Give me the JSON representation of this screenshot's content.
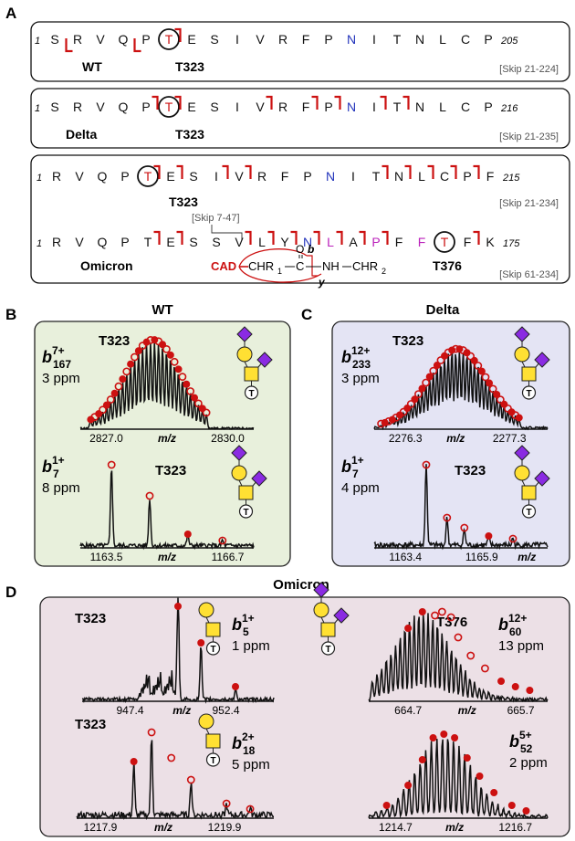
{
  "panel_labels": {
    "A": "A",
    "B": "B",
    "C": "C",
    "D": "D"
  },
  "colors": {
    "red": "#cc1111",
    "blue": "#2233bb",
    "magenta": "#bb22bb",
    "wt_bg": "#e8f0dc",
    "delta_bg": "#e4e4f4",
    "omicron_bg": "#ece0e6",
    "glycan_yellow": "#ffe033",
    "glycan_purple": "#8a2be2"
  },
  "panelA": {
    "wt": {
      "start": "1",
      "end": "205",
      "residues": [
        "S",
        "R",
        "V",
        "Q",
        "P",
        "T",
        "E",
        "S",
        "I",
        "V",
        "R",
        "F",
        "P",
        "N",
        "I",
        "T",
        "N",
        "L",
        "C",
        "P"
      ],
      "label": "WT",
      "site": "T323",
      "skip": "[Skip 21-224]"
    },
    "delta": {
      "start": "1",
      "end": "216",
      "residues": [
        "S",
        "R",
        "V",
        "Q",
        "P",
        "T",
        "E",
        "S",
        "I",
        "V",
        "R",
        "F",
        "P",
        "N",
        "I",
        "T",
        "N",
        "L",
        "C",
        "P"
      ],
      "label": "Delta",
      "site": "T323",
      "skip": "[Skip 21-235]"
    },
    "omicron1": {
      "start": "1",
      "end": "215",
      "residues": [
        "R",
        "V",
        "Q",
        "P",
        "T",
        "E",
        "S",
        "I",
        "V",
        "R",
        "F",
        "P",
        "N",
        "I",
        "T",
        "N",
        "L",
        "C",
        "P",
        "F"
      ],
      "site": "T323",
      "skip": "[Skip 21-234]"
    },
    "omicron2": {
      "start": "1",
      "end": "175",
      "residues": [
        "R",
        "V",
        "Q",
        "P",
        "T",
        "E",
        "S",
        "S",
        "V",
        "L",
        "Y",
        "N",
        "L",
        "A",
        "P",
        "F",
        "F",
        "T",
        "F",
        "K"
      ],
      "skip_inner": "[Skip 7-47]",
      "label": "Omicron",
      "site": "T376",
      "skip": "[Skip 61-234]"
    },
    "scheme": {
      "cad": "CAD",
      "chr1": "CHR",
      "sub1": "1",
      "c": "C",
      "o": "O",
      "b": "b",
      "y": "y",
      "nh": "NH",
      "chr2": "CHR",
      "sub2": "2"
    }
  },
  "panelB": {
    "title": "WT",
    "top": {
      "site": "T323",
      "ion": "b",
      "sub": "167",
      "sup": "7+",
      "ppm": "3 ppm",
      "ticks": [
        "2827.0",
        "2830.0"
      ],
      "axis": "m/z"
    },
    "bottom": {
      "site": "T323",
      "ion": "b",
      "sub": "7",
      "sup": "1+",
      "ppm": "8 ppm",
      "ticks": [
        "1163.5",
        "1166.7"
      ],
      "axis": "m/z"
    }
  },
  "panelC": {
    "title": "Delta",
    "top": {
      "site": "T323",
      "ion": "b",
      "sub": "233",
      "sup": "12+",
      "ppm": "3 ppm",
      "ticks": [
        "2276.3",
        "2277.3"
      ],
      "axis": "m/z"
    },
    "bottom": {
      "site": "T323",
      "ion": "b",
      "sub": "7",
      "sup": "1+",
      "ppm": "4 ppm",
      "ticks": [
        "1163.4",
        "1165.9"
      ],
      "axis": "m/z"
    }
  },
  "panelD": {
    "title": "Omicron",
    "tl": {
      "site": "T323",
      "ion": "b",
      "sub": "5",
      "sup": "1+",
      "ppm": "1 ppm",
      "ticks": [
        "947.4",
        "952.4"
      ],
      "axis": "m/z"
    },
    "bl": {
      "site": "T323",
      "ion": "b",
      "sub": "18",
      "sup": "2+",
      "ppm": "5 ppm",
      "ticks": [
        "1217.9",
        "1219.9"
      ],
      "axis": "m/z"
    },
    "tr": {
      "site": "T376",
      "ion": "b",
      "sub": "60",
      "sup": "12+",
      "ppm": "13 ppm",
      "ticks": [
        "664.7",
        "665.7"
      ],
      "axis": "m/z"
    },
    "br": {
      "ion": "b",
      "sub": "52",
      "sup": "5+",
      "ppm": "2 ppm",
      "ticks": [
        "1214.7",
        "1216.7"
      ],
      "axis": "m/z"
    }
  },
  "glycan_T": "T"
}
